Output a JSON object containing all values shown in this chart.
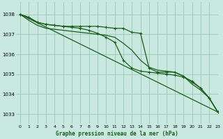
{
  "title": "Graphe pression niveau de la mer (hPa)",
  "bg_color": "#c8e8e0",
  "grid_color": "#a0ccbb",
  "line_color": "#1a5c1a",
  "xlim": [
    -0.5,
    23
  ],
  "ylim": [
    1032.5,
    1038.6
  ],
  "yticks": [
    1033,
    1034,
    1035,
    1036,
    1037,
    1038
  ],
  "xticks": [
    0,
    1,
    2,
    3,
    4,
    5,
    6,
    7,
    8,
    9,
    10,
    11,
    12,
    13,
    14,
    15,
    16,
    17,
    18,
    19,
    20,
    21,
    22,
    23
  ],
  "series": [
    {
      "x": [
        0,
        1,
        2,
        3,
        4,
        5,
        6,
        7,
        8,
        9,
        10,
        11,
        12,
        13,
        14,
        15,
        16,
        17,
        18,
        19,
        20,
        21,
        22,
        23
      ],
      "y": [
        1038.0,
        1037.85,
        1037.6,
        1037.5,
        1037.45,
        1037.4,
        1037.4,
        1037.4,
        1037.4,
        1037.4,
        1037.35,
        1037.3,
        1037.3,
        1037.1,
        1037.05,
        1035.3,
        1035.1,
        1035.1,
        1035.1,
        1034.9,
        1034.6,
        1034.3,
        1033.8,
        1033.1
      ],
      "marker": "+",
      "lw": 0.9
    },
    {
      "x": [
        0,
        1,
        2,
        3,
        4,
        5,
        6,
        7,
        8,
        9,
        10,
        11,
        12,
        13,
        14,
        15,
        16,
        17,
        18,
        19,
        20,
        21,
        22,
        23
      ],
      "y": [
        1038.0,
        1037.85,
        1037.6,
        1037.5,
        1037.45,
        1037.4,
        1037.35,
        1037.3,
        1037.2,
        1037.05,
        1036.85,
        1036.6,
        1035.7,
        1035.3,
        1035.15,
        1035.1,
        1035.05,
        1035.0,
        1034.95,
        1034.85,
        1034.65,
        1034.3,
        1033.8,
        1033.1
      ],
      "marker": "+",
      "lw": 0.9
    },
    {
      "x": [
        0,
        23
      ],
      "y": [
        1038.0,
        1033.1
      ],
      "marker": null,
      "lw": 0.9
    },
    {
      "x": [
        0,
        1,
        2,
        3,
        4,
        5,
        6,
        7,
        8,
        9,
        10,
        11,
        12,
        13,
        14,
        15,
        16,
        17,
        18,
        19,
        20,
        21,
        22,
        23
      ],
      "y": [
        1038.0,
        1037.7,
        1037.45,
        1037.3,
        1037.25,
        1037.2,
        1037.15,
        1037.1,
        1037.05,
        1037.0,
        1036.95,
        1036.85,
        1036.55,
        1036.2,
        1035.7,
        1035.35,
        1035.2,
        1035.15,
        1035.1,
        1034.9,
        1034.5,
        1034.2,
        1033.8,
        1033.1
      ],
      "marker": null,
      "lw": 0.9
    }
  ]
}
